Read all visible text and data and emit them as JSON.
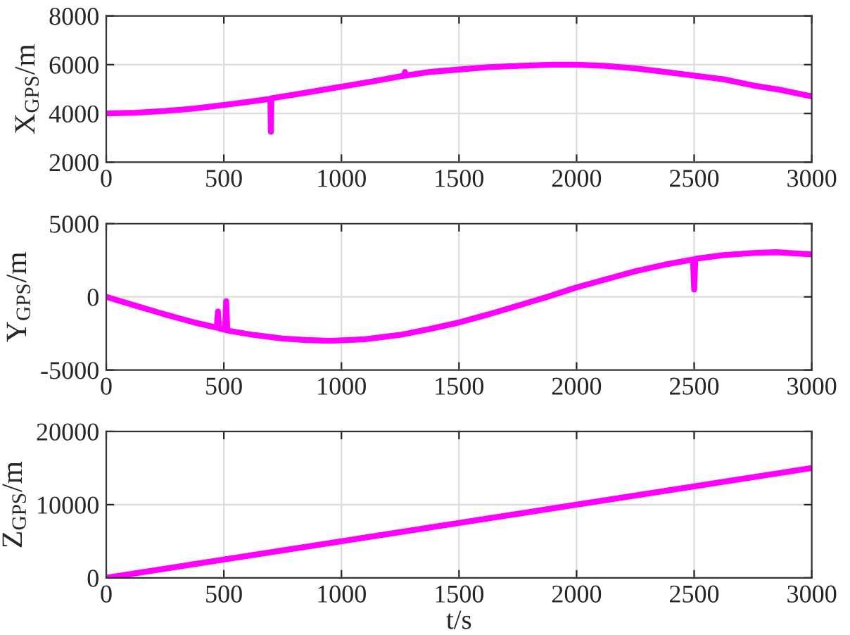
{
  "chart_data": [
    {
      "type": "line",
      "ylabel": "X$_{GPS}$/m",
      "xlim": [
        0,
        3000
      ],
      "xticks": [
        0,
        500,
        1000,
        1500,
        2000,
        2500,
        3000
      ],
      "ylim": [
        2000,
        8000
      ],
      "yticks": [
        2000,
        4000,
        6000,
        8000
      ],
      "grid": true,
      "series": [
        {
          "color": "#ff00ff",
          "x": [
            0,
            125,
            250,
            375,
            500,
            600,
            698,
            700,
            702,
            850,
            1000,
            1125,
            1268,
            1270,
            1272,
            1375,
            1500,
            1625,
            1750,
            1900,
            2000,
            2125,
            2250,
            2375,
            2500,
            2625,
            2750,
            2875,
            3000
          ],
          "values": [
            4000,
            4030,
            4100,
            4200,
            4350,
            4470,
            4600,
            3250,
            4620,
            4850,
            5100,
            5300,
            5550,
            5700,
            5550,
            5700,
            5800,
            5900,
            5950,
            6000,
            6000,
            5950,
            5850,
            5700,
            5550,
            5400,
            5150,
            4950,
            4700
          ]
        }
      ]
    },
    {
      "type": "line",
      "ylabel": "Y$_{GPS}$/m",
      "xlim": [
        0,
        3000
      ],
      "xticks": [
        0,
        500,
        1000,
        1500,
        2000,
        2500,
        3000
      ],
      "ylim": [
        -5000,
        5000
      ],
      "yticks": [
        -5000,
        0,
        5000
      ],
      "grid": true,
      "series": [
        {
          "color": "#ff00ff",
          "x": [
            0,
            125,
            250,
            375,
            470,
            475,
            480,
            505,
            510,
            515,
            625,
            750,
            850,
            950,
            1100,
            1250,
            1375,
            1500,
            1625,
            1750,
            1875,
            2000,
            2125,
            2250,
            2375,
            2495,
            2500,
            2505,
            2625,
            2750,
            2850,
            3000
          ],
          "values": [
            0,
            -600,
            -1200,
            -1750,
            -2100,
            -1000,
            -2150,
            -2250,
            -300,
            -2300,
            -2600,
            -2850,
            -2950,
            -3000,
            -2900,
            -2600,
            -2200,
            -1750,
            -1200,
            -600,
            0,
            650,
            1200,
            1750,
            2200,
            2550,
            500,
            2600,
            2850,
            3000,
            3050,
            2900
          ]
        }
      ]
    },
    {
      "type": "line",
      "xlabel": "t/s",
      "ylabel": "Z$_{GPS}$/m",
      "xlim": [
        0,
        3000
      ],
      "xticks": [
        0,
        500,
        1000,
        1500,
        2000,
        2500,
        3000
      ],
      "ylim": [
        0,
        20000
      ],
      "yticks": [
        0,
        10000,
        20000
      ],
      "grid": true,
      "series": [
        {
          "color": "#ff00ff",
          "x": [
            0,
            3000
          ],
          "values": [
            0,
            15000
          ]
        }
      ]
    }
  ]
}
